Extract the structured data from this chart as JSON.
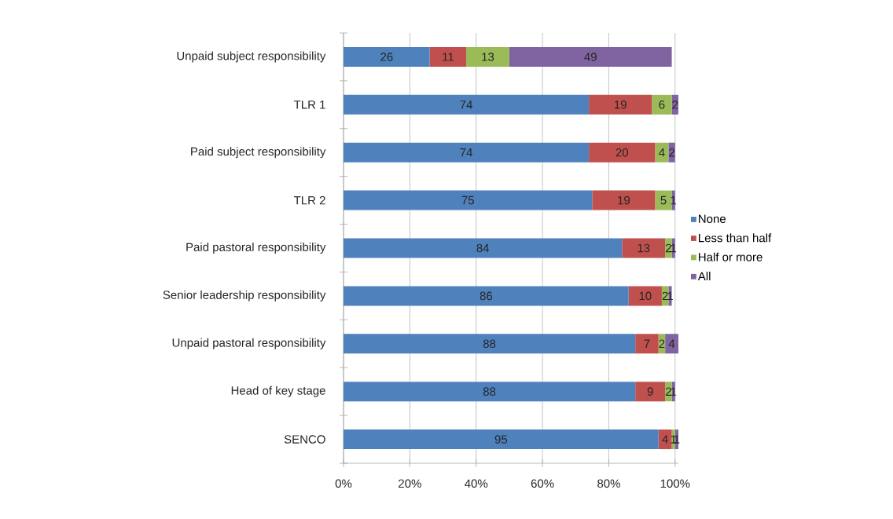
{
  "chart_data": {
    "type": "bar",
    "orientation": "horizontal",
    "stacked": true,
    "categories": [
      "Unpaid subject responsibility",
      "TLR 1",
      "Paid subject responsibility",
      "TLR 2",
      "Paid pastoral responsibility",
      "Senior leadership responsibility",
      "Unpaid pastoral responsibility",
      "Head of key stage",
      "SENCO"
    ],
    "series": [
      {
        "name": "None",
        "color": "#4f81bd",
        "values": [
          26,
          74,
          74,
          75,
          84,
          86,
          88,
          88,
          95
        ]
      },
      {
        "name": "Less than half",
        "color": "#c0504d",
        "values": [
          11,
          19,
          20,
          19,
          13,
          10,
          7,
          9,
          4
        ]
      },
      {
        "name": "Half or more",
        "color": "#9bbb59",
        "values": [
          13,
          6,
          4,
          5,
          2,
          2,
          2,
          2,
          1
        ]
      },
      {
        "name": "All",
        "color": "#8064a2",
        "values": [
          49,
          2,
          2,
          1,
          1,
          1,
          4,
          1,
          1
        ]
      }
    ],
    "xlim": [
      0,
      101
    ],
    "xticks": [
      {
        "value": 0,
        "label": "0%"
      },
      {
        "value": 20,
        "label": "20%"
      },
      {
        "value": 40,
        "label": "40%"
      },
      {
        "value": 60,
        "label": "60%"
      },
      {
        "value": 80,
        "label": "80%"
      },
      {
        "value": 100,
        "label": "100%"
      }
    ],
    "grid": "x",
    "legend": "right",
    "data_labels": true
  }
}
